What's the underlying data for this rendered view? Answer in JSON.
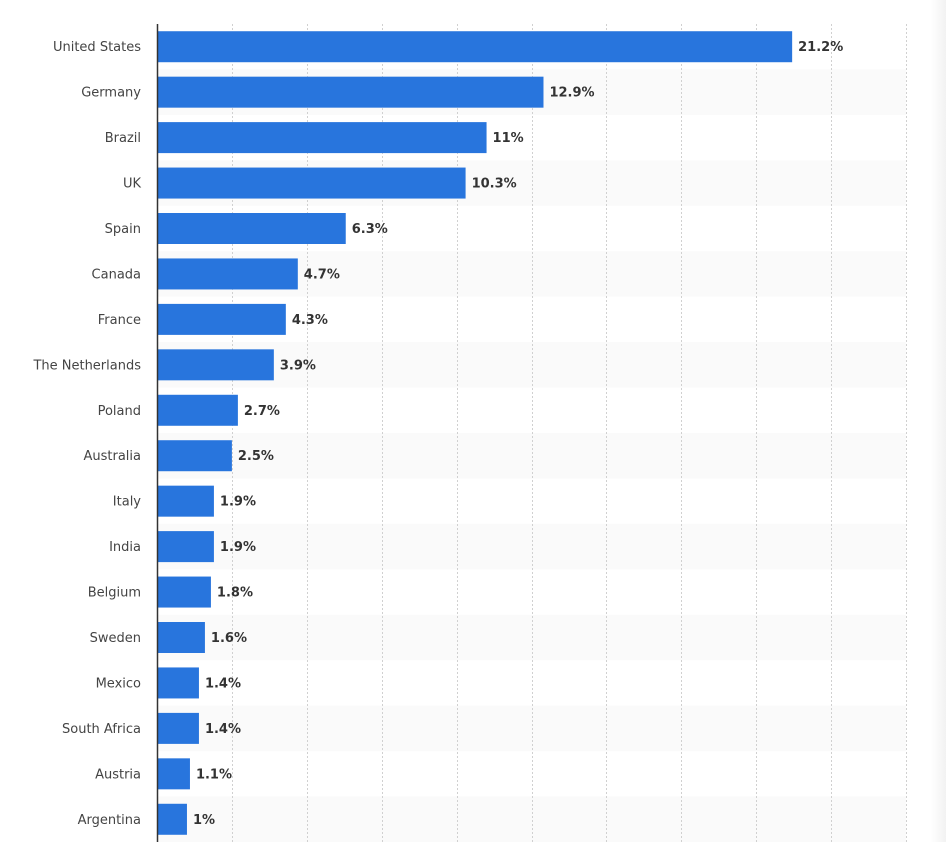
{
  "chart_data": {
    "type": "bar",
    "orientation": "horizontal",
    "title": "",
    "xlabel": "",
    "ylabel": "",
    "xlim": [
      0,
      25
    ],
    "grid": true,
    "bar_color": "#2875dd",
    "value_suffix": "%",
    "categories": [
      "United States",
      "Germany",
      "Brazil",
      "UK",
      "Spain",
      "Canada",
      "France",
      "The Netherlands",
      "Poland",
      "Australia",
      "Italy",
      "India",
      "Belgium",
      "Sweden",
      "Mexico",
      "South Africa",
      "Austria",
      "Argentina"
    ],
    "values": [
      21.2,
      12.9,
      11,
      10.3,
      6.3,
      4.7,
      4.3,
      3.9,
      2.7,
      2.5,
      1.9,
      1.9,
      1.8,
      1.6,
      1.4,
      1.4,
      1.1,
      1
    ],
    "labels": [
      "21.2%",
      "12.9%",
      "11%",
      "10.3%",
      "6.3%",
      "4.7%",
      "4.3%",
      "3.9%",
      "2.7%",
      "2.5%",
      "1.9%",
      "1.9%",
      "1.8%",
      "1.6%",
      "1.4%",
      "1.4%",
      "1.1%",
      "1%"
    ]
  }
}
